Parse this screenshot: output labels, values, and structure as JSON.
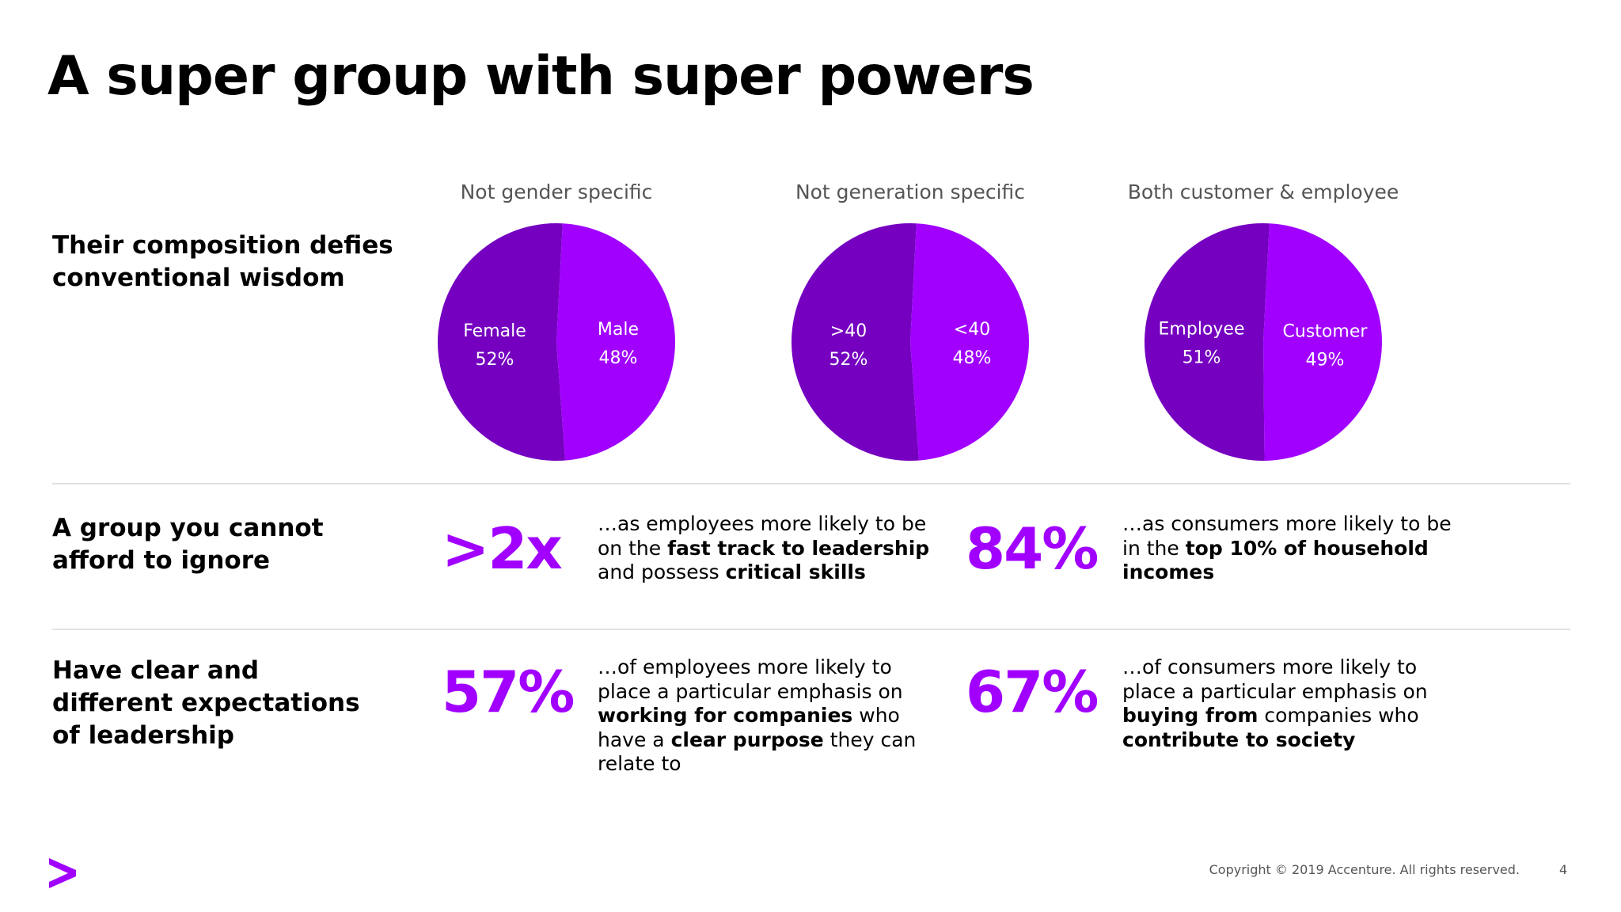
{
  "slide": {
    "title": "A super group with super powers",
    "page_number": "4",
    "copyright": "Copyright © 2019 Accenture. All rights reserved.",
    "logo_icon": "accenture-chevron-icon",
    "accent_color": "#a100ff",
    "dark_purple": "#7500c0"
  },
  "rows": {
    "composition": [
      "Their composition defies",
      "conventional wisdom"
    ],
    "ignore": [
      "A group you cannot",
      "afford to ignore"
    ],
    "expectations": [
      "Have clear and",
      "different expectations",
      "of leadership"
    ]
  },
  "stats": {
    "s1": {
      "value": ">2x",
      "parts": [
        {
          "t": "…as employees more likely to be on the "
        },
        {
          "t": "fast track to leadership",
          "b": true
        },
        {
          "t": " and possess "
        },
        {
          "t": "critical skills",
          "b": true
        }
      ]
    },
    "s2": {
      "value": "84%",
      "parts": [
        {
          "t": "…as consumers more likely to be in the "
        },
        {
          "t": "top 10% of household incomes",
          "b": true
        }
      ]
    },
    "s3": {
      "value": "57%",
      "parts": [
        {
          "t": "…of employees more likely to place a particular emphasis on "
        },
        {
          "t": "working for companies",
          "b": true
        },
        {
          "t": " who have a "
        },
        {
          "t": "clear purpose",
          "b": true
        },
        {
          "t": " they can relate to"
        }
      ]
    },
    "s4": {
      "value": "67%",
      "parts": [
        {
          "t": "…of consumers more likely to place a particular emphasis on "
        },
        {
          "t": "buying from",
          "b": true
        },
        {
          "t": " companies who "
        },
        {
          "t": "contribute to society",
          "b": true
        }
      ]
    }
  },
  "chart_data": [
    {
      "type": "pie",
      "title": "Not gender specific",
      "slices": [
        {
          "label": "Male",
          "value": 48,
          "display": "48%",
          "color": "#a100ff"
        },
        {
          "label": "Female",
          "value": 52,
          "display": "52%",
          "color": "#7500c0"
        }
      ]
    },
    {
      "type": "pie",
      "title": "Not generation specific",
      "slices": [
        {
          "label": "<40",
          "value": 48,
          "display": "48%",
          "color": "#a100ff"
        },
        {
          "label": ">40",
          "value": 52,
          "display": "52%",
          "color": "#7500c0"
        }
      ]
    },
    {
      "type": "pie",
      "title": "Both customer & employee",
      "slices": [
        {
          "label": "Customer",
          "value": 49,
          "display": "49%",
          "color": "#a100ff"
        },
        {
          "label": "Employee",
          "value": 51,
          "display": "51%",
          "color": "#7500c0"
        }
      ]
    }
  ]
}
